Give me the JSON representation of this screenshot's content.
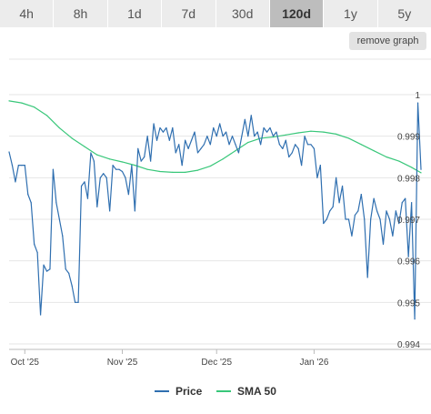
{
  "tabs": [
    {
      "label": "4h",
      "active": false
    },
    {
      "label": "8h",
      "active": false
    },
    {
      "label": "1d",
      "active": false
    },
    {
      "label": "7d",
      "active": false
    },
    {
      "label": "30d",
      "active": false
    },
    {
      "label": "120d",
      "active": true
    },
    {
      "label": "1y",
      "active": false
    },
    {
      "label": "5y",
      "active": false
    }
  ],
  "remove_graph_label": "remove graph",
  "colors": {
    "price": "#2f6fb0",
    "sma": "#39c77a"
  },
  "chart_data": {
    "type": "line",
    "title": "",
    "xlabel": "",
    "ylabel": "",
    "x_ticks": [
      "Oct '25",
      "Nov '25",
      "Dec '25",
      "Jan '26"
    ],
    "y_ticks": [
      "1",
      "0.999",
      "0.998",
      "0.997",
      "0.996",
      "0.995",
      "0.994"
    ],
    "ylim": [
      0.994,
      1.0
    ],
    "xlim": [
      "2025-09-26",
      "2026-02-04"
    ],
    "grid": true,
    "legend_position": "bottom",
    "series": [
      {
        "name": "Price",
        "points": [
          [
            "2025-09-26",
            0.99862
          ],
          [
            "2025-09-27",
            0.9983
          ],
          [
            "2025-09-28",
            0.9979
          ],
          [
            "2025-09-29",
            0.9983
          ],
          [
            "2025-09-30",
            0.9983
          ],
          [
            "2025-10-01",
            0.9983
          ],
          [
            "2025-10-02",
            0.9976
          ],
          [
            "2025-10-03",
            0.9974
          ],
          [
            "2025-10-04",
            0.9964
          ],
          [
            "2025-10-05",
            0.9962
          ],
          [
            "2025-10-06",
            0.9947
          ],
          [
            "2025-10-07",
            0.9959
          ],
          [
            "2025-10-08",
            0.99575
          ],
          [
            "2025-10-09",
            0.9958
          ],
          [
            "2025-10-10",
            0.9982
          ],
          [
            "2025-10-11",
            0.9974
          ],
          [
            "2025-10-12",
            0.997
          ],
          [
            "2025-10-13",
            0.9966
          ],
          [
            "2025-10-14",
            0.9958
          ],
          [
            "2025-10-15",
            0.9957
          ],
          [
            "2025-10-16",
            0.9954
          ],
          [
            "2025-10-17",
            0.995
          ],
          [
            "2025-10-18",
            0.995
          ],
          [
            "2025-10-19",
            0.9978
          ],
          [
            "2025-10-20",
            0.9979
          ],
          [
            "2025-10-21",
            0.9975
          ],
          [
            "2025-10-22",
            0.9986
          ],
          [
            "2025-10-23",
            0.9984
          ],
          [
            "2025-10-24",
            0.9973
          ],
          [
            "2025-10-25",
            0.998
          ],
          [
            "2025-10-26",
            0.9981
          ],
          [
            "2025-10-27",
            0.998
          ],
          [
            "2025-10-28",
            0.9972
          ],
          [
            "2025-10-29",
            0.9983
          ],
          [
            "2025-10-30",
            0.9982
          ],
          [
            "2025-10-31",
            0.9982
          ],
          [
            "2025-11-01",
            0.99815
          ],
          [
            "2025-11-02",
            0.998
          ],
          [
            "2025-11-03",
            0.9976
          ],
          [
            "2025-11-04",
            0.9983
          ],
          [
            "2025-11-05",
            0.9972
          ],
          [
            "2025-11-06",
            0.9987
          ],
          [
            "2025-11-07",
            0.9984
          ],
          [
            "2025-11-08",
            0.9985
          ],
          [
            "2025-11-09",
            0.999
          ],
          [
            "2025-11-10",
            0.9984
          ],
          [
            "2025-11-11",
            0.9993
          ],
          [
            "2025-11-12",
            0.9989
          ],
          [
            "2025-11-13",
            0.9992
          ],
          [
            "2025-11-14",
            0.9991
          ],
          [
            "2025-11-15",
            0.9992
          ],
          [
            "2025-11-16",
            0.9989
          ],
          [
            "2025-11-17",
            0.9992
          ],
          [
            "2025-11-18",
            0.9986
          ],
          [
            "2025-11-19",
            0.9988
          ],
          [
            "2025-11-20",
            0.9983
          ],
          [
            "2025-11-21",
            0.9989
          ],
          [
            "2025-11-22",
            0.9987
          ],
          [
            "2025-11-23",
            0.9989
          ],
          [
            "2025-11-24",
            0.9991
          ],
          [
            "2025-11-25",
            0.9986
          ],
          [
            "2025-11-26",
            0.9987
          ],
          [
            "2025-11-27",
            0.9988
          ],
          [
            "2025-11-28",
            0.999
          ],
          [
            "2025-11-29",
            0.9988
          ],
          [
            "2025-11-30",
            0.9992
          ],
          [
            "2025-12-01",
            0.999
          ],
          [
            "2025-12-02",
            0.9993
          ],
          [
            "2025-12-03",
            0.999
          ],
          [
            "2025-12-04",
            0.9991
          ],
          [
            "2025-12-05",
            0.9988
          ],
          [
            "2025-12-06",
            0.999
          ],
          [
            "2025-12-07",
            0.9988
          ],
          [
            "2025-12-08",
            0.9986
          ],
          [
            "2025-12-09",
            0.999
          ],
          [
            "2025-12-10",
            0.9994
          ],
          [
            "2025-12-11",
            0.999
          ],
          [
            "2025-12-12",
            0.9995
          ],
          [
            "2025-12-13",
            0.999
          ],
          [
            "2025-12-14",
            0.9991
          ],
          [
            "2025-12-15",
            0.9988
          ],
          [
            "2025-12-16",
            0.9992
          ],
          [
            "2025-12-17",
            0.9991
          ],
          [
            "2025-12-18",
            0.9992
          ],
          [
            "2025-12-19",
            0.999
          ],
          [
            "2025-12-20",
            0.9991
          ],
          [
            "2025-12-21",
            0.9988
          ],
          [
            "2025-12-22",
            0.9987
          ],
          [
            "2025-12-23",
            0.9989
          ],
          [
            "2025-12-24",
            0.9985
          ],
          [
            "2025-12-25",
            0.9986
          ],
          [
            "2025-12-26",
            0.9988
          ],
          [
            "2025-12-27",
            0.9987
          ],
          [
            "2025-12-28",
            0.9983
          ],
          [
            "2025-12-29",
            0.999
          ],
          [
            "2025-12-30",
            0.9988
          ],
          [
            "2025-12-31",
            0.9988
          ],
          [
            "2026-01-01",
            0.9987
          ],
          [
            "2026-01-02",
            0.998
          ],
          [
            "2026-01-03",
            0.9983
          ],
          [
            "2026-01-04",
            0.9969
          ],
          [
            "2026-01-05",
            0.997
          ],
          [
            "2026-01-06",
            0.9972
          ],
          [
            "2026-01-07",
            0.9973
          ],
          [
            "2026-01-08",
            0.998
          ],
          [
            "2026-01-09",
            0.9974
          ],
          [
            "2026-01-10",
            0.9978
          ],
          [
            "2026-01-11",
            0.997
          ],
          [
            "2026-01-12",
            0.997
          ],
          [
            "2026-01-13",
            0.9966
          ],
          [
            "2026-01-14",
            0.9971
          ],
          [
            "2026-01-15",
            0.9972
          ],
          [
            "2026-01-16",
            0.9976
          ],
          [
            "2026-01-17",
            0.997
          ],
          [
            "2026-01-18",
            0.9956
          ],
          [
            "2026-01-19",
            0.997
          ],
          [
            "2026-01-20",
            0.9975
          ],
          [
            "2026-01-21",
            0.9972
          ],
          [
            "2026-01-22",
            0.997
          ],
          [
            "2026-01-23",
            0.9964
          ],
          [
            "2026-01-24",
            0.9972
          ],
          [
            "2026-01-25",
            0.997
          ],
          [
            "2026-01-26",
            0.9966
          ],
          [
            "2026-01-27",
            0.9972
          ],
          [
            "2026-01-28",
            0.9969
          ],
          [
            "2026-01-29",
            0.9974
          ],
          [
            "2026-01-30",
            0.9975
          ],
          [
            "2026-01-31",
            0.9961
          ],
          [
            "2026-02-01",
            0.9974
          ],
          [
            "2026-02-02",
            0.9946
          ],
          [
            "2026-02-03",
            0.9998
          ],
          [
            "2026-02-04",
            0.9982
          ]
        ]
      },
      {
        "name": "SMA 50",
        "points": [
          [
            "2025-09-26",
            0.99985
          ],
          [
            "2025-09-30",
            0.9998
          ],
          [
            "2025-10-04",
            0.9997
          ],
          [
            "2025-10-08",
            0.9995
          ],
          [
            "2025-10-12",
            0.9992
          ],
          [
            "2025-10-16",
            0.99895
          ],
          [
            "2025-10-20",
            0.99875
          ],
          [
            "2025-10-24",
            0.99855
          ],
          [
            "2025-10-28",
            0.99845
          ],
          [
            "2025-11-01",
            0.99838
          ],
          [
            "2025-11-05",
            0.9983
          ],
          [
            "2025-11-09",
            0.9982
          ],
          [
            "2025-11-13",
            0.99815
          ],
          [
            "2025-11-17",
            0.99813
          ],
          [
            "2025-11-21",
            0.99813
          ],
          [
            "2025-11-25",
            0.99818
          ],
          [
            "2025-11-29",
            0.99828
          ],
          [
            "2025-12-03",
            0.99845
          ],
          [
            "2025-12-07",
            0.99865
          ],
          [
            "2025-12-11",
            0.99885
          ],
          [
            "2025-12-15",
            0.99895
          ],
          [
            "2025-12-19",
            0.99898
          ],
          [
            "2025-12-23",
            0.99903
          ],
          [
            "2025-12-27",
            0.99908
          ],
          [
            "2025-12-31",
            0.99912
          ],
          [
            "2026-01-04",
            0.9991
          ],
          [
            "2026-01-08",
            0.99905
          ],
          [
            "2026-01-12",
            0.99895
          ],
          [
            "2026-01-16",
            0.9988
          ],
          [
            "2026-01-20",
            0.99865
          ],
          [
            "2026-01-24",
            0.9985
          ],
          [
            "2026-01-28",
            0.9984
          ],
          [
            "2026-02-01",
            0.99825
          ],
          [
            "2026-02-04",
            0.99812
          ]
        ]
      }
    ]
  }
}
